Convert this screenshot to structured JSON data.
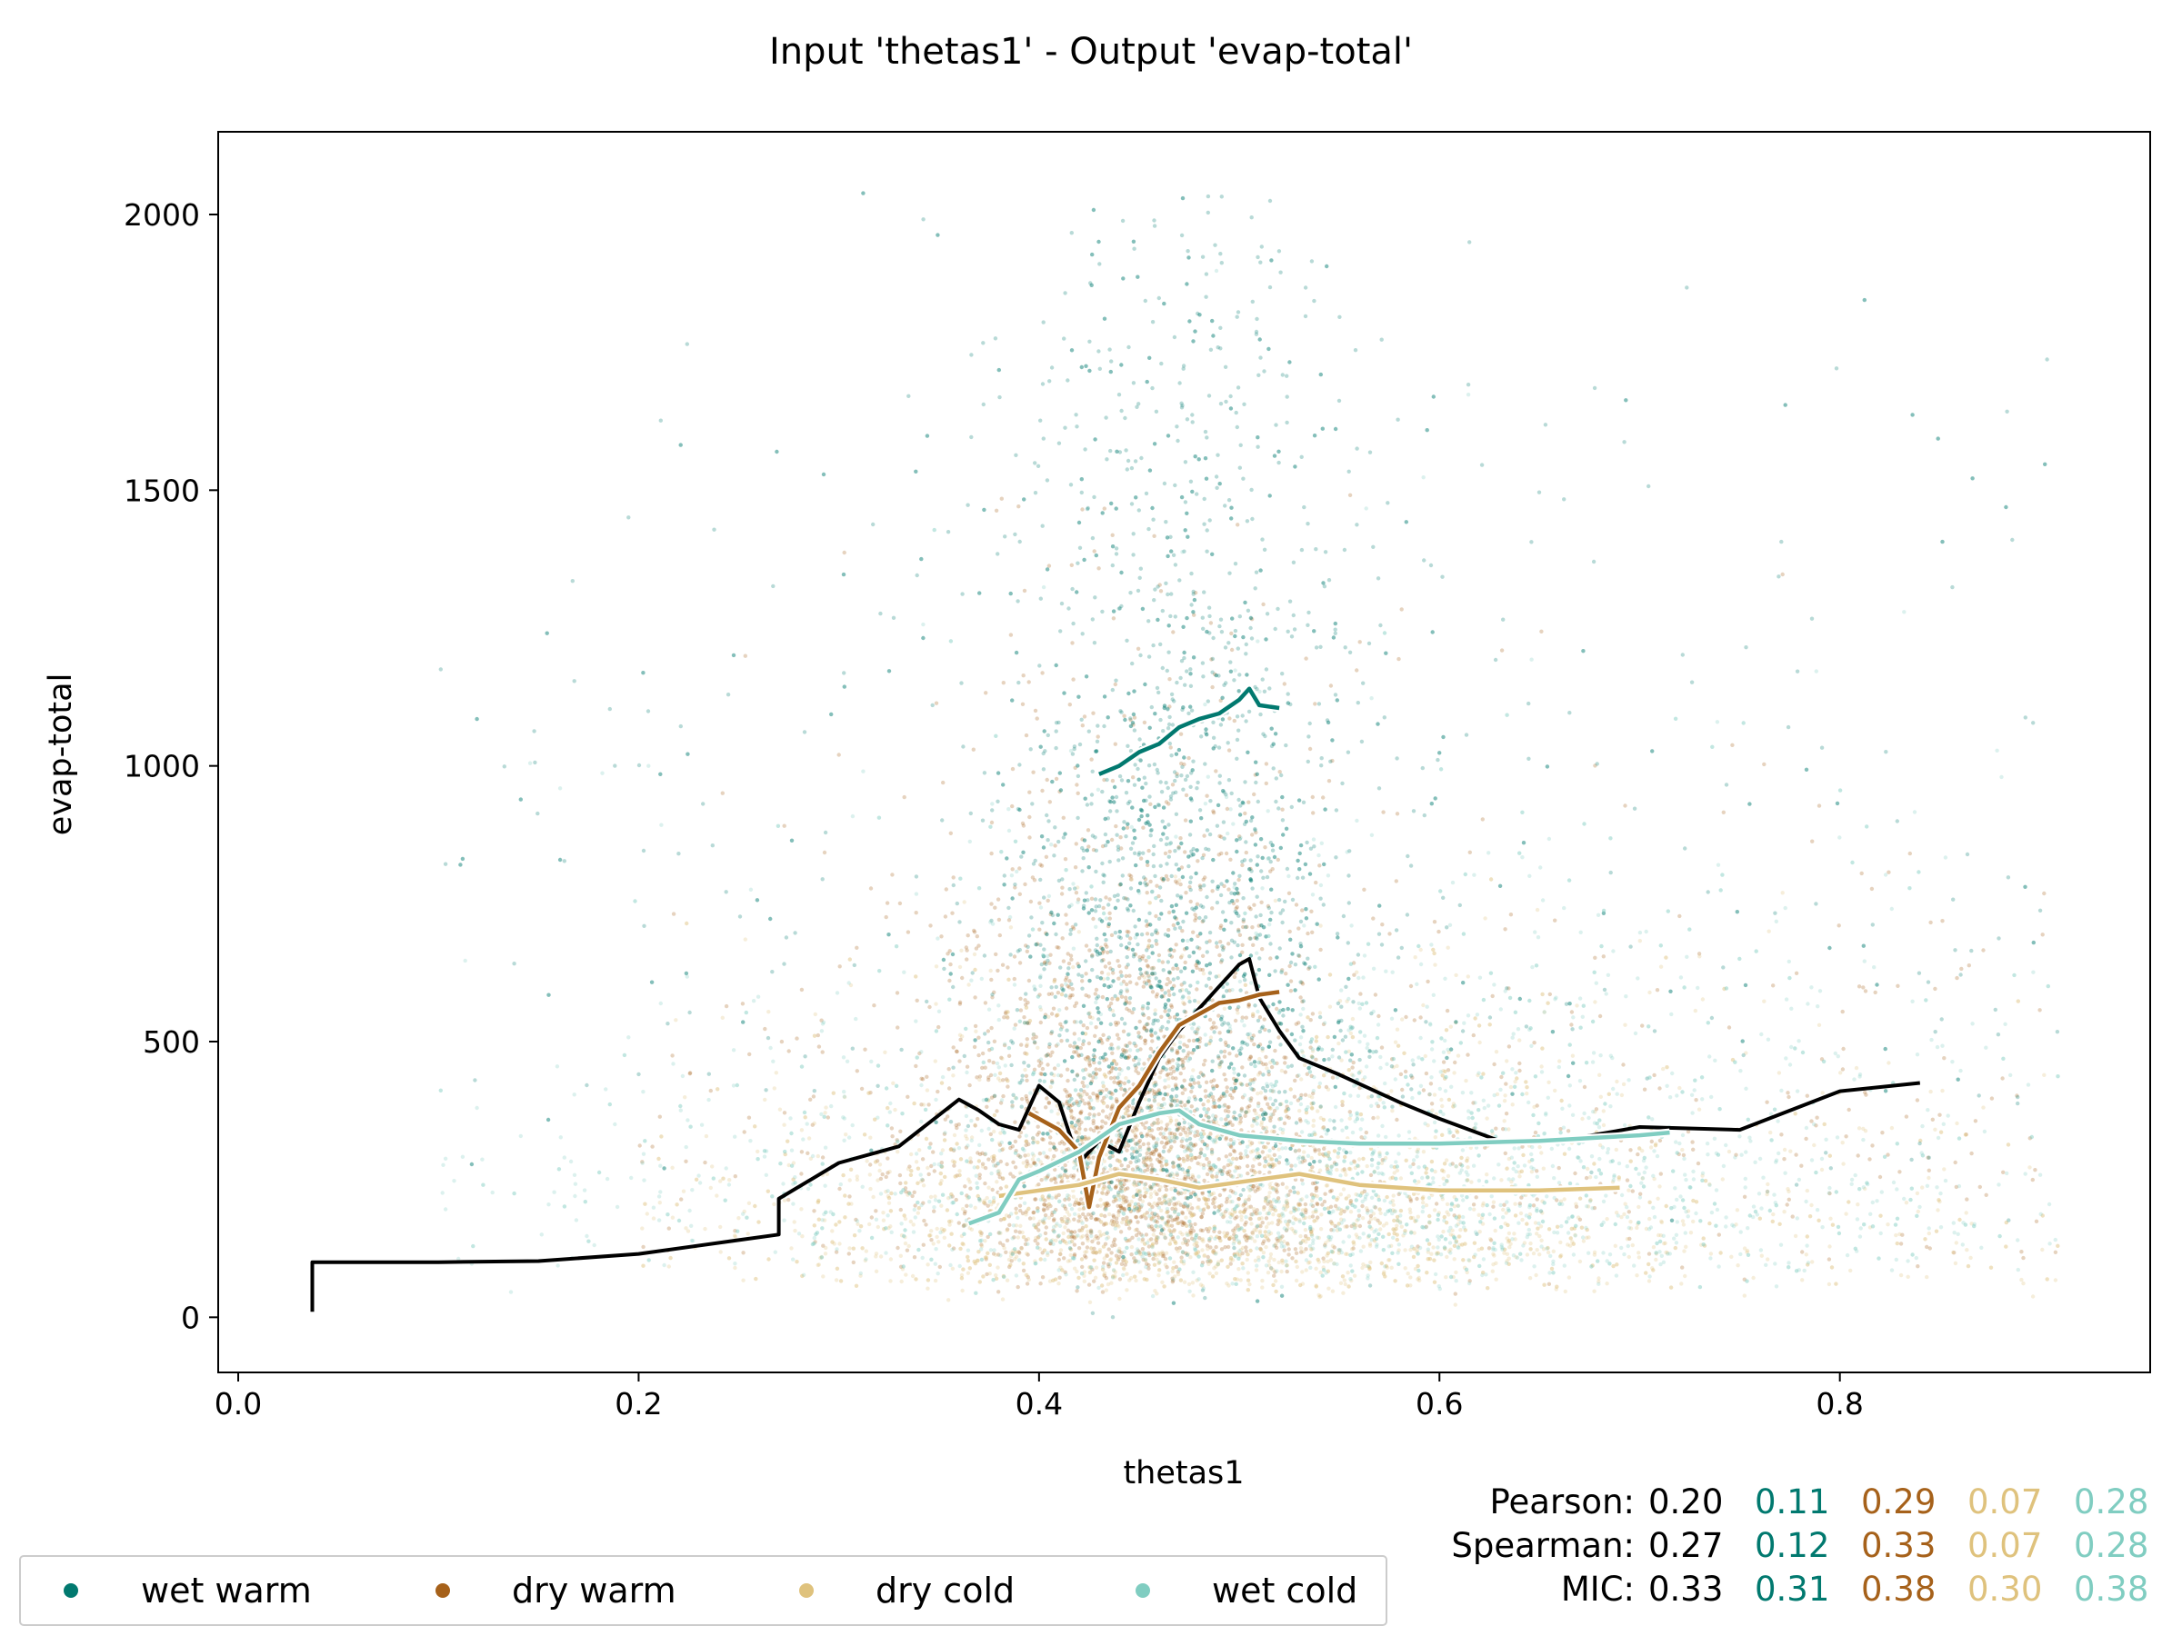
{
  "chart_data": {
    "type": "scatter",
    "title": "Input 'thetas1' - Output 'evap-total'",
    "xlabel": "thetas1",
    "ylabel": "evap-total",
    "xlim": [
      -0.01,
      0.955
    ],
    "ylim": [
      -100,
      2150
    ],
    "xticks": [
      0.0,
      0.2,
      0.4,
      0.6,
      0.8
    ],
    "xtick_labels": [
      "0.0",
      "0.2",
      "0.4",
      "0.6",
      "0.8"
    ],
    "yticks": [
      0,
      500,
      1000,
      1500,
      2000
    ],
    "ytick_labels": [
      "0",
      "500",
      "1000",
      "1500",
      "2000"
    ],
    "grid": false,
    "legend_position": "bottom-left",
    "colors": {
      "overall": "#000000",
      "wet_warm": "#01796f",
      "dry_warm": "#a6611a",
      "dry_cold": "#dfc27d",
      "wet_cold": "#80cdc1"
    },
    "series": [
      {
        "name": "wet warm",
        "color": "#01796f",
        "scatter": {
          "x_center": 0.47,
          "x_spread": 0.045,
          "x_range": [
            0.1,
            0.91
          ],
          "y_median": 800,
          "y_max": 2040
        },
        "trend": {
          "x": [
            0.43,
            0.44,
            0.45,
            0.46,
            0.47,
            0.48,
            0.49,
            0.5,
            0.505,
            0.51,
            0.52
          ],
          "y": [
            985,
            1000,
            1025,
            1040,
            1070,
            1085,
            1095,
            1120,
            1140,
            1110,
            1105
          ]
        }
      },
      {
        "name": "dry warm",
        "color": "#a6611a",
        "scatter": {
          "x_center": 0.45,
          "x_spread": 0.05,
          "x_range": [
            0.2,
            0.91
          ],
          "y_median": 350,
          "y_max": 1500
        },
        "trend": {
          "x": [
            0.395,
            0.41,
            0.42,
            0.425,
            0.43,
            0.44,
            0.45,
            0.46,
            0.47,
            0.48,
            0.49,
            0.5,
            0.51,
            0.52
          ],
          "y": [
            370,
            340,
            300,
            200,
            290,
            380,
            420,
            480,
            530,
            550,
            570,
            575,
            585,
            590
          ]
        }
      },
      {
        "name": "dry cold",
        "color": "#dfc27d",
        "scatter": {
          "x_center": 0.5,
          "x_spread": 0.12,
          "x_range": [
            0.2,
            0.91
          ],
          "y_median": 200,
          "y_max": 800
        },
        "trend": {
          "x": [
            0.38,
            0.4,
            0.42,
            0.44,
            0.46,
            0.48,
            0.5,
            0.53,
            0.56,
            0.6,
            0.65,
            0.69
          ],
          "y": [
            220,
            230,
            240,
            260,
            250,
            235,
            245,
            260,
            240,
            230,
            230,
            235
          ]
        }
      },
      {
        "name": "wet cold",
        "color": "#80cdc1",
        "scatter": {
          "x_center": 0.55,
          "x_spread": 0.15,
          "x_range": [
            0.1,
            0.91
          ],
          "y_median": 280,
          "y_max": 1900
        },
        "trend": {
          "x": [
            0.365,
            0.38,
            0.39,
            0.4,
            0.42,
            0.44,
            0.46,
            0.47,
            0.48,
            0.5,
            0.53,
            0.56,
            0.6,
            0.65,
            0.7,
            0.715
          ],
          "y": [
            170,
            190,
            250,
            265,
            300,
            350,
            370,
            375,
            350,
            330,
            320,
            315,
            315,
            320,
            330,
            335
          ]
        }
      }
    ],
    "overall_trend": {
      "name": "",
      "color": "#000000",
      "x": [
        0.037,
        0.037,
        0.1,
        0.15,
        0.2,
        0.25,
        0.27,
        0.27,
        0.3,
        0.33,
        0.36,
        0.37,
        0.38,
        0.39,
        0.4,
        0.41,
        0.42,
        0.43,
        0.44,
        0.45,
        0.46,
        0.47,
        0.48,
        0.49,
        0.5,
        0.505,
        0.51,
        0.52,
        0.53,
        0.55,
        0.58,
        0.6,
        0.63,
        0.66,
        0.7,
        0.75,
        0.8,
        0.84
      ],
      "y": [
        10,
        100,
        100,
        102,
        115,
        140,
        150,
        215,
        280,
        310,
        395,
        375,
        350,
        340,
        420,
        390,
        280,
        320,
        300,
        390,
        470,
        520,
        560,
        600,
        640,
        650,
        580,
        520,
        470,
        440,
        390,
        360,
        320,
        320,
        345,
        340,
        410,
        425
      ]
    },
    "stats": {
      "rows": [
        {
          "label": "Pearson:",
          "overall": "0.20",
          "wet_warm": "0.11",
          "dry_warm": "0.29",
          "dry_cold": "0.07",
          "wet_cold": "0.28"
        },
        {
          "label": "Spearman:",
          "overall": "0.27",
          "wet_warm": "0.12",
          "dry_warm": "0.33",
          "dry_cold": "0.07",
          "wet_cold": "0.28"
        },
        {
          "label": "MIC:",
          "overall": "0.33",
          "wet_warm": "0.31",
          "dry_warm": "0.38",
          "dry_cold": "0.30",
          "wet_cold": "0.38"
        }
      ]
    }
  }
}
